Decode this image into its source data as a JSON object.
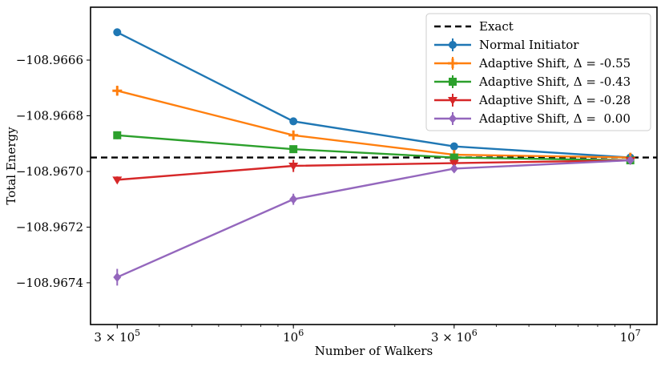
{
  "chart_data": {
    "type": "line",
    "title": "",
    "xlabel": "Number of Walkers",
    "ylabel": "Total Energy",
    "xscale": "log",
    "xlim": [
      250000,
      12000000
    ],
    "ylim": [
      -108.96755,
      -108.96641
    ],
    "x": [
      300000,
      1000000,
      3000000,
      10000000
    ],
    "xtick_labels": [
      {
        "value": 300000,
        "base": "3 × 10",
        "exp": "5"
      },
      {
        "value": 1000000,
        "base": "10",
        "exp": "6"
      },
      {
        "value": 3000000,
        "base": "3 × 10",
        "exp": "6"
      },
      {
        "value": 10000000,
        "base": "10",
        "exp": "7"
      }
    ],
    "yticks": [
      -108.9674,
      -108.9672,
      -108.967,
      -108.9668,
      -108.9666
    ],
    "ytick_labels": [
      "−108.9674",
      "−108.9672",
      "−108.9670",
      "−108.9668",
      "−108.9666"
    ],
    "exact": {
      "name": "Exact",
      "value": -108.96695,
      "color": "#000000"
    },
    "legend_position": "top-right",
    "series": [
      {
        "name": "Normal Initiator",
        "color": "#1f77b4",
        "marker": "circle",
        "values": [
          -108.9665,
          -108.96682,
          -108.96691,
          -108.96695
        ],
        "errors": [
          1.2e-05,
          1.2e-05,
          8e-06,
          6e-06
        ]
      },
      {
        "name": "Adaptive Shift, Δ = -0.55",
        "color": "#ff7f0e",
        "marker": "plus",
        "values": [
          -108.96671,
          -108.96687,
          -108.96694,
          -108.96695
        ],
        "errors": [
          1.8e-05,
          1.4e-05,
          8e-06,
          6e-06
        ]
      },
      {
        "name": "Adaptive Shift, Δ = -0.43",
        "color": "#2ca02c",
        "marker": "square",
        "values": [
          -108.96687,
          -108.96692,
          -108.96695,
          -108.96696
        ],
        "errors": [
          1.4e-05,
          1e-05,
          8e-06,
          6e-06
        ]
      },
      {
        "name": "Adaptive Shift, Δ = -0.28",
        "color": "#d62728",
        "marker": "triangle-down",
        "values": [
          -108.96703,
          -108.96698,
          -108.96697,
          -108.96696
        ],
        "errors": [
          1.2e-05,
          2.2e-05,
          1.2e-05,
          8e-06
        ]
      },
      {
        "name": "Adaptive Shift, Δ =  0.00",
        "color": "#9467bd",
        "marker": "diamond",
        "values": [
          -108.96738,
          -108.9671,
          -108.96699,
          -108.96696
        ],
        "errors": [
          3e-05,
          2e-05,
          1e-05,
          6e-06
        ]
      }
    ]
  }
}
